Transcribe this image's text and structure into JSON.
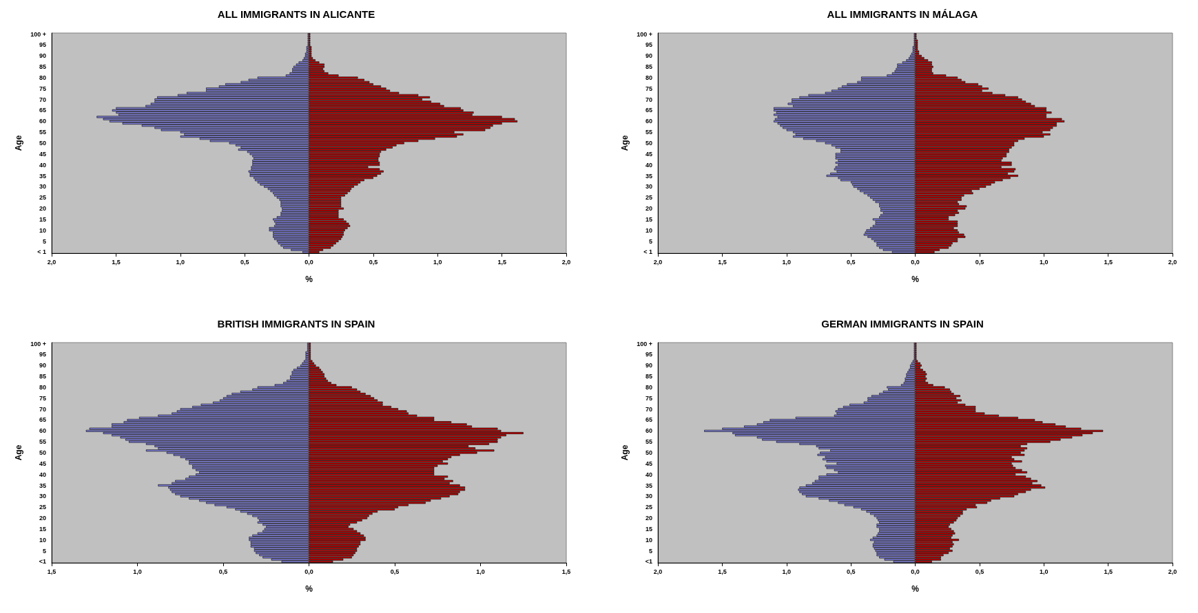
{
  "chart_data": [
    {
      "type": "bar",
      "orientation": "horizontal",
      "stacked": true,
      "title": "ALL IMMIGRANTS IN ALICANTE",
      "xlabel": "%",
      "ylabel": "Age",
      "grid": false,
      "categories": [
        "100 +",
        null,
        null,
        null,
        null,
        "95",
        null,
        null,
        null,
        null,
        "90",
        null,
        null,
        null,
        null,
        "85",
        null,
        null,
        null,
        null,
        "80",
        null,
        null,
        null,
        null,
        "75",
        null,
        null,
        null,
        null,
        "70",
        null,
        null,
        null,
        null,
        "65",
        null,
        null,
        null,
        null,
        "60",
        null,
        null,
        null,
        null,
        "55",
        null,
        null,
        null,
        null,
        "50",
        null,
        null,
        null,
        null,
        "45",
        null,
        null,
        null,
        null,
        "40",
        null,
        null,
        null,
        null,
        "35",
        null,
        null,
        null,
        null,
        "30",
        null,
        null,
        null,
        null,
        "25",
        null,
        null,
        null,
        null,
        "20",
        null,
        null,
        null,
        null,
        "15",
        null,
        null,
        null,
        null,
        "10",
        null,
        null,
        null,
        null,
        "5",
        null,
        null,
        null,
        null,
        "< 1"
      ],
      "xlim": [
        -2,
        2
      ],
      "xticks": [
        {
          "value": -2,
          "label": "2,0"
        },
        {
          "value": -1.5,
          "label": "1,5"
        },
        {
          "value": -1,
          "label": "1,0"
        },
        {
          "value": -0.5,
          "label": "0,5"
        },
        {
          "value": 0,
          "label": "0,0"
        },
        {
          "value": 0.5,
          "label": "0,5"
        },
        {
          "value": 1,
          "label": "1,0"
        },
        {
          "value": 1.5,
          "label": "1,5"
        },
        {
          "value": 2,
          "label": "2,0"
        }
      ],
      "series": [
        {
          "color": "#8080d8",
          "values": [
            -0.01,
            -0.01,
            -0.01,
            -0.01,
            -0.01,
            -0.01,
            -0.02,
            -0.02,
            -0.02,
            -0.03,
            -0.03,
            -0.04,
            -0.05,
            -0.08,
            -0.1,
            -0.12,
            -0.13,
            -0.13,
            -0.15,
            -0.18,
            -0.4,
            -0.47,
            -0.53,
            -0.65,
            -0.7,
            -0.8,
            -0.8,
            -0.95,
            -1.02,
            -1.18,
            -1.2,
            -1.2,
            -1.23,
            -1.27,
            -1.5,
            -1.53,
            -1.5,
            -1.48,
            -1.65,
            -1.6,
            -1.55,
            -1.45,
            -1.3,
            -1.2,
            -1.15,
            -1.0,
            -0.97,
            -1.0,
            -0.85,
            -0.77,
            -0.62,
            -0.57,
            -0.53,
            -0.55,
            -0.48,
            -0.46,
            -0.44,
            -0.43,
            -0.44,
            -0.44,
            -0.44,
            -0.45,
            -0.45,
            -0.47,
            -0.46,
            -0.46,
            -0.43,
            -0.42,
            -0.4,
            -0.38,
            -0.35,
            -0.32,
            -0.3,
            -0.28,
            -0.27,
            -0.25,
            -0.23,
            -0.22,
            -0.22,
            -0.22,
            -0.21,
            -0.21,
            -0.22,
            -0.22,
            -0.25,
            -0.28,
            -0.27,
            -0.26,
            -0.27,
            -0.31,
            -0.31,
            -0.28,
            -0.28,
            -0.28,
            -0.27,
            -0.25,
            -0.24,
            -0.22,
            -0.2,
            -0.14,
            -0.05
          ]
        },
        {
          "color": "#c00000",
          "values": [
            0.01,
            0.01,
            0.01,
            0.01,
            0.01,
            0.01,
            0.02,
            0.02,
            0.02,
            0.02,
            0.02,
            0.03,
            0.05,
            0.08,
            0.12,
            0.12,
            0.11,
            0.12,
            0.15,
            0.23,
            0.38,
            0.43,
            0.47,
            0.5,
            0.56,
            0.6,
            0.63,
            0.7,
            0.85,
            0.94,
            0.88,
            0.95,
            1.02,
            1.05,
            1.18,
            1.2,
            1.28,
            1.27,
            1.5,
            1.6,
            1.62,
            1.5,
            1.43,
            1.41,
            1.37,
            1.13,
            1.2,
            1.15,
            0.98,
            0.85,
            0.74,
            0.68,
            0.65,
            0.6,
            0.56,
            0.55,
            0.55,
            0.54,
            0.54,
            0.55,
            0.55,
            0.46,
            0.55,
            0.58,
            0.56,
            0.53,
            0.5,
            0.43,
            0.4,
            0.38,
            0.35,
            0.33,
            0.32,
            0.3,
            0.28,
            0.25,
            0.25,
            0.25,
            0.25,
            0.25,
            0.27,
            0.23,
            0.23,
            0.23,
            0.23,
            0.27,
            0.29,
            0.31,
            0.32,
            0.3,
            0.28,
            0.27,
            0.27,
            0.26,
            0.25,
            0.23,
            0.21,
            0.19,
            0.17,
            0.11,
            0.08
          ]
        }
      ]
    },
    {
      "type": "bar",
      "orientation": "horizontal",
      "stacked": true,
      "title": "ALL IMMIGRANTS IN MÁLAGA",
      "xlabel": "%",
      "ylabel": "Age",
      "grid": false,
      "categories": [
        "100 +",
        null,
        null,
        null,
        null,
        "95",
        null,
        null,
        null,
        null,
        "90",
        null,
        null,
        null,
        null,
        "85",
        null,
        null,
        null,
        null,
        "80",
        null,
        null,
        null,
        null,
        "75",
        null,
        null,
        null,
        null,
        "70",
        null,
        null,
        null,
        null,
        "65",
        null,
        null,
        null,
        null,
        "60",
        null,
        null,
        null,
        null,
        "55",
        null,
        null,
        null,
        null,
        "50",
        null,
        null,
        null,
        null,
        "45",
        null,
        null,
        null,
        null,
        "40",
        null,
        null,
        null,
        null,
        "35",
        null,
        null,
        null,
        null,
        "30",
        null,
        null,
        null,
        null,
        "25",
        null,
        null,
        null,
        null,
        "20",
        null,
        null,
        null,
        null,
        "15",
        null,
        null,
        null,
        null,
        "10",
        null,
        null,
        null,
        null,
        "5",
        null,
        null,
        null,
        null,
        "< 1"
      ],
      "xlim": [
        -2,
        2
      ],
      "xticks": [
        {
          "value": -2,
          "label": "2,0"
        },
        {
          "value": -1.5,
          "label": "1,5"
        },
        {
          "value": -1,
          "label": "1,0"
        },
        {
          "value": -0.5,
          "label": "0,5"
        },
        {
          "value": 0,
          "label": "0,0"
        },
        {
          "value": 0.5,
          "label": "0,5"
        },
        {
          "value": 1,
          "label": "1,0"
        },
        {
          "value": 1.5,
          "label": "1,5"
        },
        {
          "value": 2,
          "label": "2,0"
        }
      ],
      "series": [
        {
          "color": "#8080d8",
          "values": [
            -0.01,
            -0.01,
            -0.01,
            -0.01,
            -0.01,
            -0.01,
            -0.02,
            -0.02,
            -0.02,
            -0.03,
            -0.04,
            -0.05,
            -0.07,
            -0.1,
            -0.14,
            -0.14,
            -0.15,
            -0.16,
            -0.18,
            -0.22,
            -0.42,
            -0.42,
            -0.45,
            -0.53,
            -0.57,
            -0.6,
            -0.65,
            -0.7,
            -0.83,
            -0.9,
            -0.96,
            -0.96,
            -0.99,
            -0.95,
            -1.1,
            -1.1,
            -1.08,
            -1.1,
            -1.07,
            -1.09,
            -1.1,
            -1.07,
            -1.05,
            -1.03,
            -1.0,
            -0.95,
            -0.93,
            -0.95,
            -0.87,
            -0.77,
            -0.7,
            -0.65,
            -0.62,
            -0.58,
            -0.58,
            -0.62,
            -0.62,
            -0.62,
            -0.6,
            -0.62,
            -0.6,
            -0.62,
            -0.63,
            -0.61,
            -0.66,
            -0.69,
            -0.6,
            -0.58,
            -0.5,
            -0.49,
            -0.48,
            -0.45,
            -0.43,
            -0.4,
            -0.37,
            -0.35,
            -0.33,
            -0.31,
            -0.28,
            -0.28,
            -0.27,
            -0.27,
            -0.25,
            -0.27,
            -0.28,
            -0.33,
            -0.31,
            -0.31,
            -0.33,
            -0.35,
            -0.38,
            -0.39,
            -0.4,
            -0.37,
            -0.34,
            -0.32,
            -0.3,
            -0.3,
            -0.28,
            -0.25,
            -0.18
          ]
        },
        {
          "color": "#c00000",
          "values": [
            0.01,
            0.01,
            0.01,
            0.02,
            0.02,
            0.02,
            0.02,
            0.02,
            0.03,
            0.03,
            0.05,
            0.07,
            0.1,
            0.13,
            0.13,
            0.14,
            0.13,
            0.13,
            0.14,
            0.24,
            0.33,
            0.36,
            0.39,
            0.49,
            0.52,
            0.57,
            0.52,
            0.6,
            0.7,
            0.8,
            0.83,
            0.86,
            0.9,
            0.93,
            1.02,
            1.02,
            1.06,
            1.02,
            1.02,
            1.14,
            1.16,
            1.1,
            1.1,
            1.07,
            1.05,
            0.99,
            1.05,
            1.0,
            0.85,
            0.8,
            0.77,
            0.77,
            0.75,
            0.73,
            0.73,
            0.71,
            0.71,
            0.68,
            0.67,
            0.75,
            0.75,
            0.67,
            0.78,
            0.77,
            0.72,
            0.8,
            0.74,
            0.68,
            0.62,
            0.59,
            0.55,
            0.5,
            0.44,
            0.45,
            0.38,
            0.36,
            0.36,
            0.33,
            0.34,
            0.4,
            0.39,
            0.33,
            0.34,
            0.31,
            0.26,
            0.26,
            0.33,
            0.33,
            0.33,
            0.3,
            0.33,
            0.34,
            0.38,
            0.39,
            0.33,
            0.33,
            0.29,
            0.28,
            0.26,
            0.19,
            0.15
          ]
        }
      ]
    },
    {
      "type": "bar",
      "orientation": "horizontal",
      "stacked": true,
      "title": "BRITISH IMMIGRANTS IN SPAIN",
      "xlabel": "%",
      "ylabel": "Age",
      "grid": false,
      "categories": [
        "100 +",
        null,
        null,
        null,
        null,
        "95",
        null,
        null,
        null,
        null,
        "90",
        null,
        null,
        null,
        null,
        "85",
        null,
        null,
        null,
        null,
        "80",
        null,
        null,
        null,
        null,
        "75",
        null,
        null,
        null,
        null,
        "70",
        null,
        null,
        null,
        null,
        "65",
        null,
        null,
        null,
        null,
        "60",
        null,
        null,
        null,
        null,
        "55",
        null,
        null,
        null,
        null,
        "50",
        null,
        null,
        null,
        null,
        "45",
        null,
        null,
        null,
        null,
        "40",
        null,
        null,
        null,
        null,
        "35",
        null,
        null,
        null,
        null,
        "30",
        null,
        null,
        null,
        null,
        "25",
        null,
        null,
        null,
        null,
        "20",
        null,
        null,
        null,
        null,
        "15",
        null,
        null,
        null,
        null,
        "10",
        null,
        null,
        null,
        null,
        "5",
        null,
        null,
        null,
        null,
        "<1"
      ],
      "xlim": [
        -1.5,
        1.5
      ],
      "xticks": [
        {
          "value": -1.5,
          "label": "1,5"
        },
        {
          "value": -1,
          "label": "1,0"
        },
        {
          "value": -0.5,
          "label": "0,5"
        },
        {
          "value": 0,
          "label": "0,0"
        },
        {
          "value": 0.5,
          "label": "0,5"
        },
        {
          "value": 1,
          "label": "1,0"
        },
        {
          "value": 1.5,
          "label": "1,5"
        }
      ],
      "series": [
        {
          "color": "#8080d8",
          "values": [
            -0.01,
            -0.01,
            -0.01,
            -0.01,
            -0.02,
            -0.02,
            -0.02,
            -0.02,
            -0.03,
            -0.04,
            -0.05,
            -0.07,
            -0.09,
            -0.1,
            -0.1,
            -0.11,
            -0.11,
            -0.13,
            -0.15,
            -0.2,
            -0.3,
            -0.33,
            -0.4,
            -0.45,
            -0.48,
            -0.5,
            -0.52,
            -0.56,
            -0.63,
            -0.68,
            -0.75,
            -0.77,
            -0.8,
            -0.88,
            -0.99,
            -1.06,
            -1.08,
            -1.15,
            -1.15,
            -1.28,
            -1.3,
            -1.2,
            -1.15,
            -1.1,
            -1.07,
            -1.05,
            -0.95,
            -0.9,
            -0.88,
            -0.95,
            -0.83,
            -0.79,
            -0.75,
            -0.72,
            -0.7,
            -0.7,
            -0.68,
            -0.68,
            -0.66,
            -0.64,
            -0.66,
            -0.7,
            -0.72,
            -0.78,
            -0.8,
            -0.88,
            -0.82,
            -0.81,
            -0.8,
            -0.78,
            -0.75,
            -0.7,
            -0.64,
            -0.6,
            -0.55,
            -0.48,
            -0.43,
            -0.4,
            -0.36,
            -0.33,
            -0.3,
            -0.29,
            -0.3,
            -0.27,
            -0.25,
            -0.26,
            -0.27,
            -0.3,
            -0.33,
            -0.35,
            -0.35,
            -0.34,
            -0.34,
            -0.34,
            -0.32,
            -0.32,
            -0.31,
            -0.29,
            -0.27,
            -0.22,
            -0.16
          ]
        },
        {
          "color": "#c00000",
          "values": [
            0.01,
            0.01,
            0.01,
            0.01,
            0.01,
            0.01,
            0.01,
            0.01,
            0.02,
            0.03,
            0.04,
            0.06,
            0.07,
            0.08,
            0.09,
            0.09,
            0.1,
            0.11,
            0.13,
            0.16,
            0.25,
            0.28,
            0.3,
            0.33,
            0.36,
            0.38,
            0.4,
            0.43,
            0.43,
            0.48,
            0.52,
            0.57,
            0.58,
            0.63,
            0.73,
            0.73,
            0.83,
            0.92,
            0.95,
            1.1,
            1.12,
            1.25,
            1.15,
            1.12,
            1.1,
            1.1,
            1.05,
            0.93,
            0.97,
            1.08,
            0.98,
            0.88,
            0.83,
            0.81,
            0.78,
            0.81,
            0.75,
            0.73,
            0.73,
            0.73,
            0.73,
            0.81,
            0.79,
            0.84,
            0.82,
            0.88,
            0.91,
            0.91,
            0.88,
            0.87,
            0.82,
            0.77,
            0.71,
            0.68,
            0.58,
            0.52,
            0.5,
            0.4,
            0.37,
            0.35,
            0.34,
            0.31,
            0.28,
            0.24,
            0.23,
            0.26,
            0.28,
            0.3,
            0.32,
            0.33,
            0.33,
            0.3,
            0.3,
            0.29,
            0.28,
            0.28,
            0.27,
            0.26,
            0.25,
            0.2,
            0.14
          ]
        }
      ]
    },
    {
      "type": "bar",
      "orientation": "horizontal",
      "stacked": true,
      "title": "GERMAN IMMIGRANTS IN SPAIN",
      "xlabel": "%",
      "ylabel": "Age",
      "grid": false,
      "categories": [
        "100 +",
        null,
        null,
        null,
        null,
        "95",
        null,
        null,
        null,
        null,
        "90",
        null,
        null,
        null,
        null,
        "85",
        null,
        null,
        null,
        null,
        "80",
        null,
        null,
        null,
        null,
        "75",
        null,
        null,
        null,
        null,
        "70",
        null,
        null,
        null,
        null,
        "65",
        null,
        null,
        null,
        null,
        "60",
        null,
        null,
        null,
        null,
        "55",
        null,
        null,
        null,
        null,
        "50",
        null,
        null,
        null,
        null,
        "45",
        null,
        null,
        null,
        null,
        "40",
        null,
        null,
        null,
        null,
        "35",
        null,
        null,
        null,
        null,
        "30",
        null,
        null,
        null,
        null,
        "25",
        null,
        null,
        null,
        null,
        "20",
        null,
        null,
        null,
        null,
        "15",
        null,
        null,
        null,
        null,
        "10",
        null,
        null,
        null,
        null,
        "5",
        null,
        null,
        null,
        null,
        "<1"
      ],
      "xlim": [
        -2,
        2
      ],
      "xticks": [
        {
          "value": -2,
          "label": "2,0"
        },
        {
          "value": -1.5,
          "label": "1,5"
        },
        {
          "value": -1,
          "label": "1,0"
        },
        {
          "value": -0.5,
          "label": "0,5"
        },
        {
          "value": 0,
          "label": "0,0"
        },
        {
          "value": 0.5,
          "label": "0,5"
        },
        {
          "value": 1,
          "label": "1,0"
        },
        {
          "value": 1.5,
          "label": "1,5"
        },
        {
          "value": 2,
          "label": "2,0"
        }
      ],
      "series": [
        {
          "color": "#8080d8",
          "values": [
            -0.01,
            -0.01,
            -0.01,
            -0.01,
            -0.01,
            -0.01,
            -0.01,
            -0.01,
            -0.02,
            -0.03,
            -0.04,
            -0.04,
            -0.05,
            -0.06,
            -0.07,
            -0.07,
            -0.08,
            -0.08,
            -0.09,
            -0.11,
            -0.22,
            -0.21,
            -0.25,
            -0.28,
            -0.34,
            -0.37,
            -0.37,
            -0.4,
            -0.51,
            -0.56,
            -0.6,
            -0.62,
            -0.61,
            -0.63,
            -0.93,
            -1.13,
            -1.18,
            -1.23,
            -1.33,
            -1.5,
            -1.64,
            -1.42,
            -1.4,
            -1.23,
            -1.19,
            -1.08,
            -0.9,
            -0.77,
            -0.75,
            -0.66,
            -0.74,
            -0.76,
            -0.7,
            -0.72,
            -0.69,
            -0.61,
            -0.7,
            -0.69,
            -0.63,
            -0.6,
            -0.69,
            -0.75,
            -0.75,
            -0.78,
            -0.8,
            -0.85,
            -0.9,
            -0.91,
            -0.9,
            -0.88,
            -0.85,
            -0.75,
            -0.67,
            -0.6,
            -0.55,
            -0.48,
            -0.42,
            -0.38,
            -0.35,
            -0.32,
            -0.3,
            -0.29,
            -0.28,
            -0.3,
            -0.3,
            -0.28,
            -0.28,
            -0.29,
            -0.3,
            -0.33,
            -0.35,
            -0.32,
            -0.33,
            -0.33,
            -0.32,
            -0.31,
            -0.3,
            -0.3,
            -0.28,
            -0.24,
            -0.17
          ]
        },
        {
          "color": "#c00000",
          "values": [
            0.01,
            0.01,
            0.01,
            0.01,
            0.01,
            0.01,
            0.01,
            0.01,
            0.02,
            0.04,
            0.05,
            0.04,
            0.06,
            0.08,
            0.09,
            0.08,
            0.09,
            0.08,
            0.1,
            0.14,
            0.23,
            0.27,
            0.28,
            0.3,
            0.35,
            0.32,
            0.36,
            0.33,
            0.39,
            0.47,
            0.47,
            0.47,
            0.54,
            0.65,
            0.8,
            0.93,
            0.99,
            1.09,
            1.17,
            1.29,
            1.46,
            1.38,
            1.3,
            1.22,
            1.13,
            1.05,
            0.87,
            0.82,
            0.87,
            0.85,
            0.82,
            0.85,
            0.75,
            0.77,
            0.83,
            0.75,
            0.76,
            0.78,
            0.83,
            0.87,
            0.78,
            0.86,
            0.9,
            0.95,
            0.91,
            0.98,
            1.01,
            0.9,
            0.86,
            0.8,
            0.77,
            0.66,
            0.59,
            0.56,
            0.47,
            0.48,
            0.4,
            0.37,
            0.37,
            0.35,
            0.33,
            0.32,
            0.3,
            0.27,
            0.26,
            0.28,
            0.3,
            0.31,
            0.29,
            0.28,
            0.34,
            0.29,
            0.3,
            0.29,
            0.27,
            0.29,
            0.26,
            0.22,
            0.2,
            0.2,
            0.13
          ]
        }
      ]
    }
  ]
}
